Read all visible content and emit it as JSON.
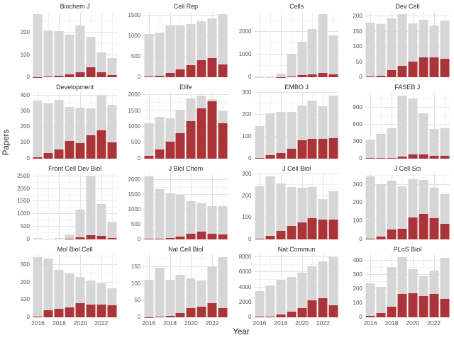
{
  "axes": {
    "x_label": "Year",
    "y_label": "Papers",
    "x_tick_labels": [
      "2016",
      "2018",
      "2020",
      "2022"
    ]
  },
  "colors": {
    "total_bar": "#d6d6d6",
    "subset_bar": "#ab3438",
    "grid_major": "#e2e2e2",
    "grid_minor": "#f2f2f2",
    "axis_text": "#565656",
    "title_text": "#2b2b2b",
    "background": "#ffffff"
  },
  "chart_data": {
    "type": "bar",
    "layout": "facet_wrap 4x4, free y scales, stacked overlay bars",
    "xlabel": "Year",
    "ylabel": "Papers",
    "years": [
      2016,
      2017,
      2018,
      2019,
      2020,
      2021,
      2022,
      2023
    ],
    "series_legend": [
      "total papers (gray)",
      "subset papers (dark red)"
    ],
    "facets": [
      {
        "journal": "Biochem J",
        "y_ticks": [
          0,
          100,
          200
        ],
        "total": [
          280,
          210,
          205,
          190,
          230,
          180,
          110,
          85
        ],
        "subset": [
          2,
          5,
          6,
          15,
          22,
          45,
          22,
          10
        ]
      },
      {
        "journal": "Cell Rep",
        "y_ticks": [
          0,
          500,
          1000,
          1500
        ],
        "total": [
          1050,
          1090,
          1250,
          1250,
          1280,
          1350,
          1430,
          1520
        ],
        "subset": [
          20,
          40,
          110,
          200,
          300,
          410,
          460,
          320
        ]
      },
      {
        "journal": "Cells",
        "y_ticks": [
          0,
          1000,
          2000
        ],
        "total": [
          5,
          10,
          170,
          1030,
          1560,
          2100,
          2750,
          1850
        ],
        "subset": [
          0,
          0,
          5,
          30,
          90,
          140,
          190,
          120
        ]
      },
      {
        "journal": "Dev Cell",
        "y_ticks": [
          0,
          50,
          100,
          150,
          200
        ],
        "total": [
          180,
          175,
          193,
          207,
          178,
          190,
          170,
          186
        ],
        "subset": [
          3,
          5,
          25,
          38,
          52,
          65,
          65,
          62
        ]
      },
      {
        "journal": "Development",
        "y_ticks": [
          0,
          100,
          200,
          300,
          400
        ],
        "total": [
          372,
          352,
          373,
          330,
          323,
          320,
          403,
          342
        ],
        "subset": [
          8,
          33,
          57,
          112,
          98,
          147,
          180,
          103
        ]
      },
      {
        "journal": "Elife",
        "y_ticks": [
          0,
          500,
          1000,
          1500,
          2000
        ],
        "total": [
          1100,
          1320,
          1270,
          1540,
          1900,
          1990,
          1870,
          1480
        ],
        "subset": [
          80,
          270,
          520,
          800,
          1180,
          1590,
          1800,
          1100
        ]
      },
      {
        "journal": "EMBO J",
        "y_ticks": [
          0,
          100,
          200,
          300
        ],
        "total": [
          148,
          207,
          212,
          213,
          243,
          265,
          237,
          288
        ],
        "subset": [
          2,
          15,
          25,
          45,
          83,
          90,
          88,
          93
        ]
      },
      {
        "journal": "FASEB J",
        "y_ticks": [
          0,
          300,
          600,
          900
        ],
        "total": [
          340,
          430,
          540,
          1120,
          1070,
          800,
          520,
          540
        ],
        "subset": [
          2,
          5,
          10,
          30,
          65,
          75,
          50,
          40
        ]
      },
      {
        "journal": "Front Cell Dev Biol",
        "y_ticks": [
          0,
          500,
          1000,
          1500,
          2000,
          2500
        ],
        "total": [
          40,
          20,
          60,
          200,
          1180,
          2500,
          1400,
          700
        ],
        "subset": [
          0,
          0,
          2,
          15,
          90,
          170,
          130,
          40
        ]
      },
      {
        "journal": "J Biol Chem",
        "y_ticks": [
          0,
          500,
          1000,
          1500,
          2000
        ],
        "total": [
          2130,
          1700,
          1560,
          1500,
          1300,
          1220,
          1130,
          1130
        ],
        "subset": [
          10,
          20,
          45,
          80,
          190,
          250,
          175,
          165
        ]
      },
      {
        "journal": "J Cell Biol",
        "y_ticks": [
          0,
          100,
          200,
          300
        ],
        "total": [
          243,
          290,
          257,
          241,
          238,
          241,
          185,
          222
        ],
        "subset": [
          3,
          14,
          40,
          60,
          78,
          98,
          92,
          90
        ]
      },
      {
        "journal": "J Cell Sci",
        "y_ticks": [
          0,
          100,
          200,
          300
        ],
        "total": [
          345,
          303,
          322,
          290,
          330,
          327,
          281,
          247
        ],
        "subset": [
          2,
          15,
          53,
          57,
          120,
          137,
          117,
          85
        ]
      },
      {
        "journal": "Mol Biol Cell",
        "y_ticks": [
          0,
          100,
          200,
          300
        ],
        "total": [
          345,
          335,
          270,
          252,
          230,
          210,
          193,
          165
        ],
        "subset": [
          5,
          40,
          47,
          57,
          83,
          75,
          72,
          68
        ]
      },
      {
        "journal": "Nat Cell Biol",
        "y_ticks": [
          0,
          50,
          100,
          150
        ],
        "total": [
          113,
          148,
          113,
          127,
          117,
          111,
          153,
          180
        ],
        "subset": [
          1,
          3,
          5,
          13,
          28,
          32,
          42,
          28
        ]
      },
      {
        "journal": "Nat Commun",
        "y_ticks": [
          0,
          2000,
          4000,
          6000,
          8000
        ],
        "total": [
          3450,
          4250,
          5000,
          5400,
          5950,
          6800,
          7400,
          8000
        ],
        "subset": [
          50,
          120,
          420,
          750,
          1250,
          2250,
          2550,
          1600
        ]
      },
      {
        "journal": "PLoS Biol",
        "y_ticks": [
          0,
          100,
          200,
          300,
          400
        ],
        "total": [
          238,
          215,
          355,
          425,
          338,
          292,
          330,
          422
        ],
        "subset": [
          10,
          28,
          75,
          165,
          172,
          148,
          165,
          128
        ]
      }
    ]
  }
}
